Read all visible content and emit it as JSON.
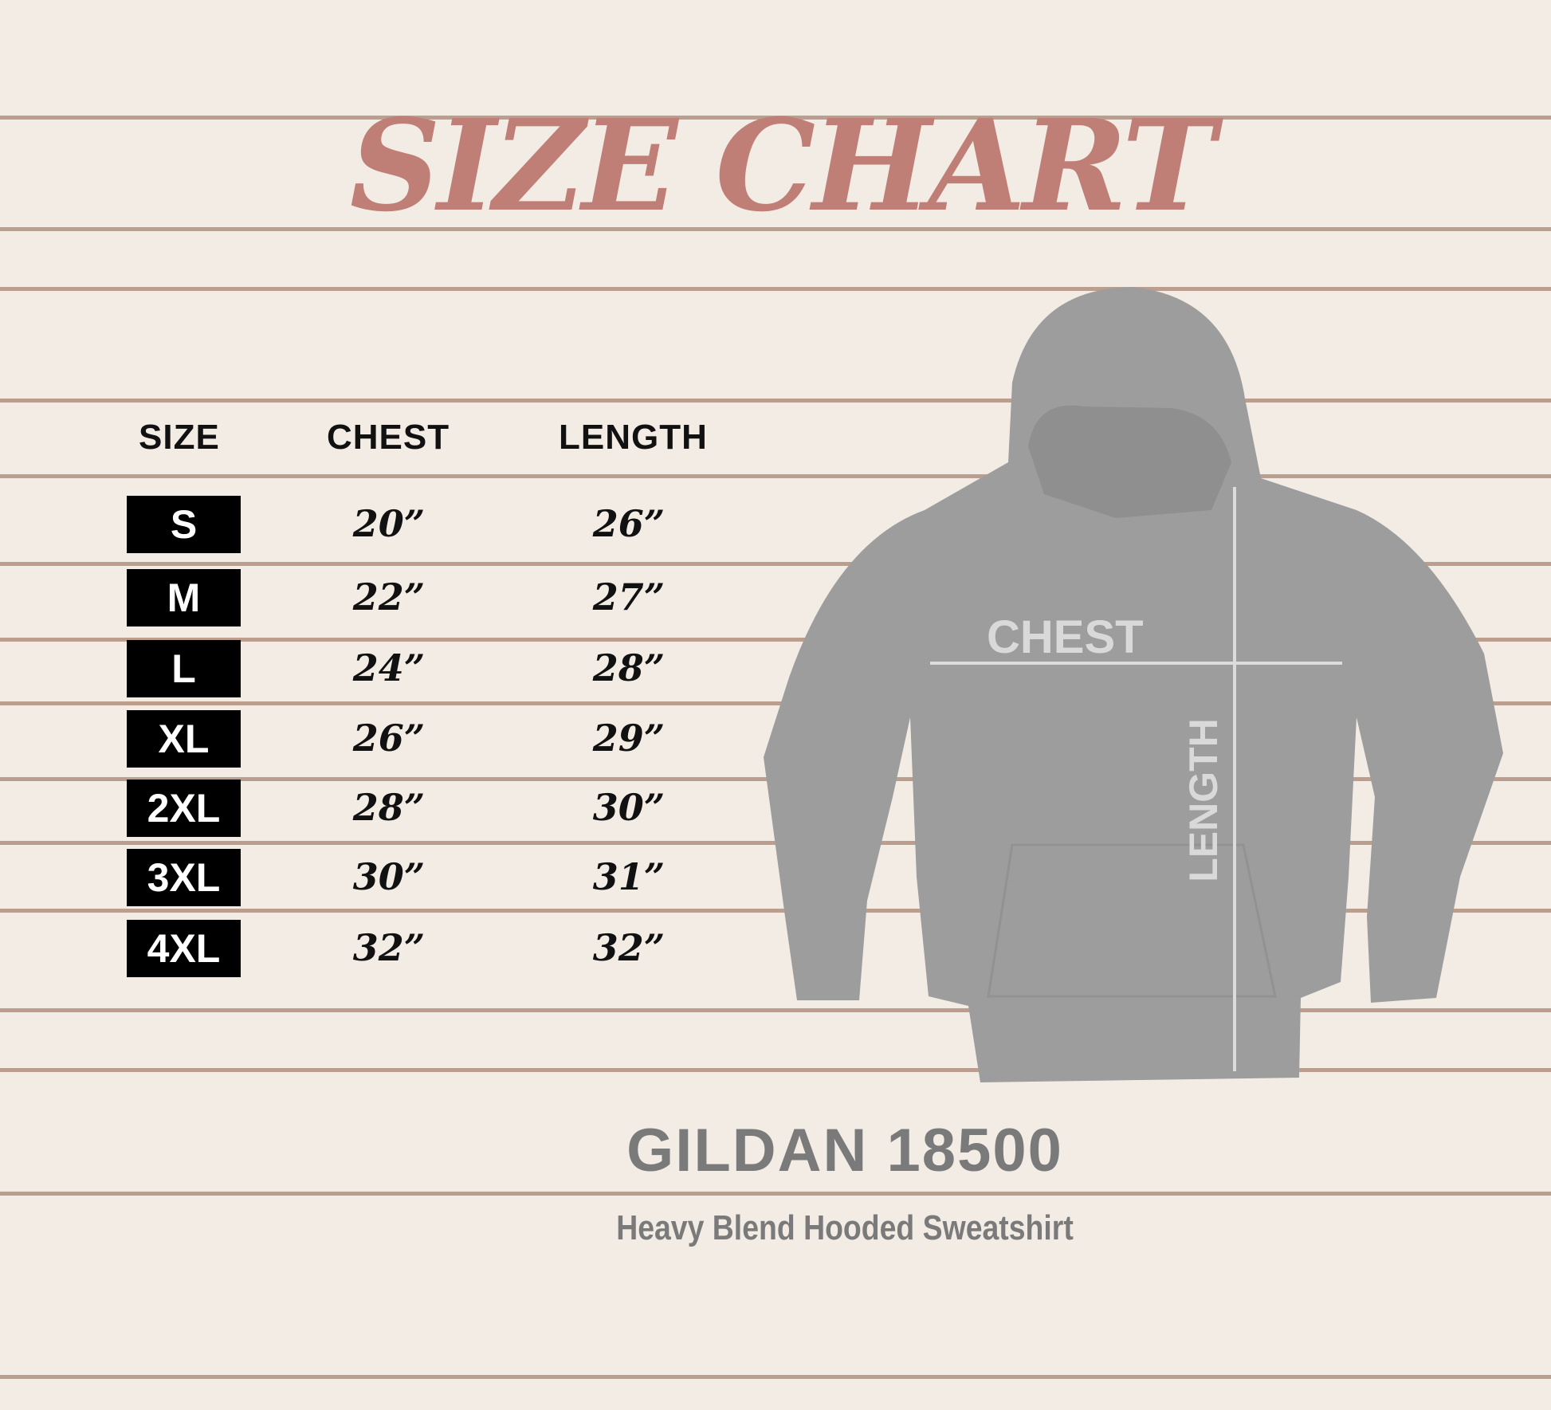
{
  "title": "SIZE CHART",
  "table": {
    "headers": [
      "SIZE",
      "CHEST",
      "LENGTH"
    ],
    "rows": [
      {
        "size": "S",
        "chest": "20”",
        "length": "26”"
      },
      {
        "size": "M",
        "chest": "22”",
        "length": "27”"
      },
      {
        "size": "L",
        "chest": "24”",
        "length": "28”"
      },
      {
        "size": "XL",
        "chest": "26”",
        "length": "29”"
      },
      {
        "size": "2XL",
        "chest": "28”",
        "length": "30”"
      },
      {
        "size": "3XL",
        "chest": "30”",
        "length": "31”"
      },
      {
        "size": "4XL",
        "chest": "32”",
        "length": "32”"
      }
    ]
  },
  "diagram": {
    "chest_label": "CHEST",
    "length_label": "LENGTH"
  },
  "product": {
    "model": "GILDAN 18500",
    "description": "Heavy Blend Hooded Sweatshirt"
  },
  "colors": {
    "title": "#bf7f76",
    "hoodie": "#9d9d9d",
    "background": "#f2ece5",
    "plank_line": "#a98470"
  }
}
